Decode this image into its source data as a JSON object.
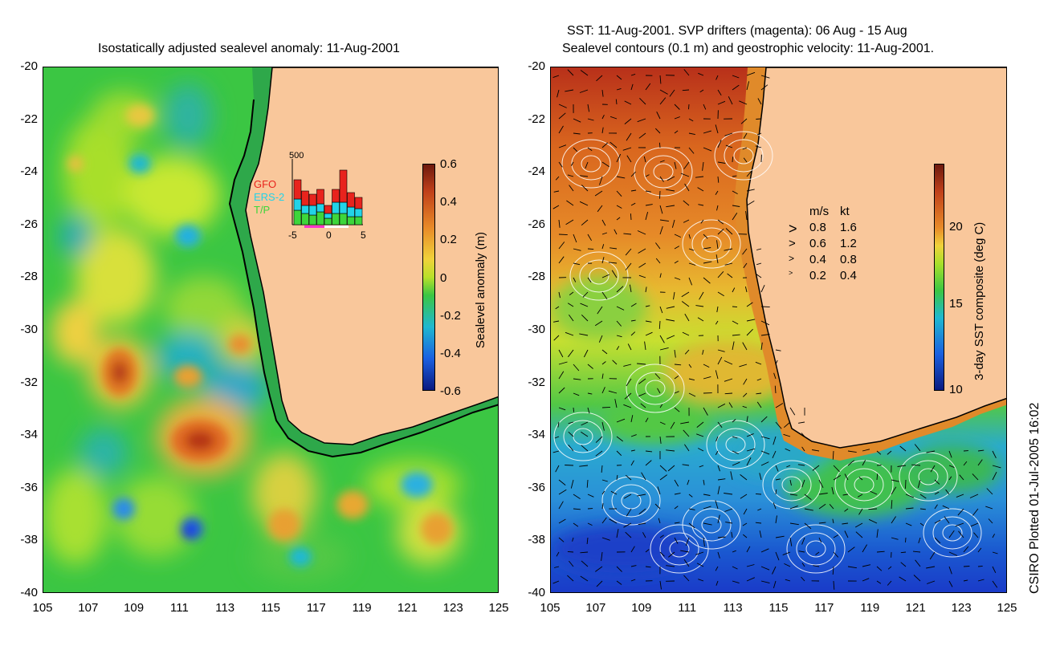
{
  "left_panel": {
    "title": "Isostatically adjusted sealevel anomaly: 11-Aug-2001",
    "y_ticks": [
      "-20",
      "-22",
      "-24",
      "-26",
      "-28",
      "-30",
      "-32",
      "-34",
      "-36",
      "-38",
      "-40"
    ],
    "x_ticks": [
      "105",
      "107",
      "109",
      "111",
      "113",
      "115",
      "117",
      "119",
      "121",
      "123",
      "125"
    ],
    "colorbar": {
      "label": "Sealevel anomaly (m)",
      "ticks": [
        "0.6",
        "0.4",
        "0.2",
        "0",
        "-0.2",
        "-0.4",
        "-0.6"
      ]
    },
    "inset": {
      "ymax_label": "500",
      "x_ticks": [
        "-5",
        "0",
        "5"
      ],
      "legend": [
        {
          "name": "GFO",
          "color": "#e8231d"
        },
        {
          "name": "ERS-2",
          "color": "#22d3e8"
        },
        {
          "name": "T/P",
          "color": "#3dd63b"
        }
      ]
    }
  },
  "right_panel": {
    "title_line1": "SST: 11-Aug-2001. SVP drifters (magenta): 06 Aug - 15 Aug",
    "title_line2": "Sealevel contours (0.1 m) and geostrophic velocity: 11-Aug-2001.",
    "y_ticks": [
      "-20",
      "-22",
      "-24",
      "-26",
      "-28",
      "-30",
      "-32",
      "-34",
      "-36",
      "-38",
      "-40"
    ],
    "x_ticks": [
      "105",
      "107",
      "109",
      "111",
      "113",
      "115",
      "117",
      "119",
      "121",
      "123",
      "125"
    ],
    "colorbar": {
      "label": "3-day SST composite (deg C)",
      "ticks": [
        "20",
        "15",
        "10"
      ]
    },
    "speed_legend": {
      "header_ms": "m/s",
      "header_kt": "kt",
      "rows": [
        {
          "ms": "0.8",
          "kt": "1.6"
        },
        {
          "ms": "0.6",
          "kt": "1.2"
        },
        {
          "ms": "0.4",
          "kt": "0.8"
        },
        {
          "ms": "0.2",
          "kt": "0.4"
        }
      ]
    }
  },
  "credit": "CSIRO Plotted 01-Jul-2005 16:02",
  "colors": {
    "land": "#f9c79b",
    "coast": "#000000",
    "shelf": "#2ea84a"
  }
}
